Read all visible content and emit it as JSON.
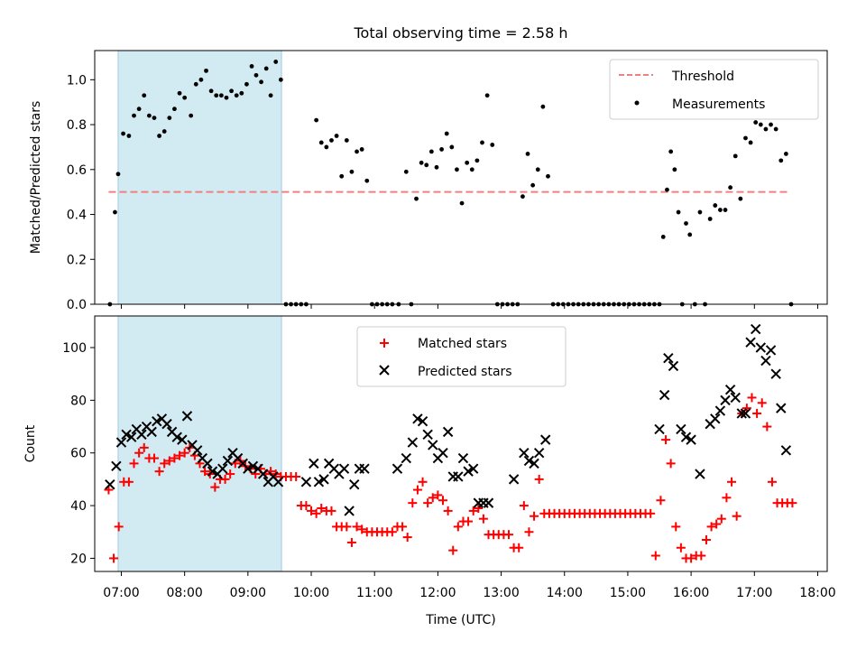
{
  "chart_data": [
    {
      "type": "scatter",
      "title": "Total observing time = 2.58 h",
      "ylabel": "Matched/Predicted stars",
      "xlabel": "",
      "xlim": [
        6.58,
        18.15
      ],
      "ylim": [
        0,
        1.13
      ],
      "yticks": [
        "0.0",
        "0.2",
        "0.4",
        "0.6",
        "0.8",
        "1.0"
      ],
      "grid": false,
      "legend": "top-right",
      "shaded_interval": {
        "x": [
          6.95,
          9.53
        ],
        "color": "#add8e6"
      },
      "threshold": {
        "name": "Threshold",
        "y": 0.5,
        "x": [
          6.8,
          17.55
        ],
        "color": "#f08080"
      },
      "series": [
        {
          "name": "Measurements",
          "color": "#000000",
          "x": [
            6.82,
            6.9,
            6.95,
            7.03,
            7.12,
            7.2,
            7.28,
            7.36,
            7.44,
            7.52,
            7.6,
            7.68,
            7.76,
            7.84,
            7.92,
            8.0,
            8.1,
            8.18,
            8.26,
            8.34,
            8.42,
            8.5,
            8.58,
            8.66,
            8.74,
            8.82,
            8.9,
            8.98,
            9.06,
            9.13,
            9.21,
            9.29,
            9.36,
            9.44,
            9.52,
            9.6,
            9.68,
            9.76,
            9.84,
            9.92,
            10.08,
            10.16,
            10.24,
            10.32,
            10.4,
            10.48,
            10.56,
            10.64,
            10.72,
            10.8,
            10.88,
            10.96,
            11.04,
            11.12,
            11.2,
            11.28,
            11.38,
            11.5,
            11.58,
            11.66,
            11.74,
            11.82,
            11.9,
            11.98,
            12.06,
            12.14,
            12.22,
            12.3,
            12.38,
            12.46,
            12.54,
            12.62,
            12.7,
            12.78,
            12.86,
            12.94,
            13.02,
            13.1,
            13.18,
            13.26,
            13.34,
            13.42,
            13.5,
            13.58,
            13.66,
            13.74,
            13.82,
            13.9,
            13.98,
            14.06,
            14.14,
            14.22,
            14.3,
            14.38,
            14.46,
            14.54,
            14.62,
            14.7,
            14.78,
            14.86,
            14.94,
            15.02,
            15.1,
            15.18,
            15.26,
            15.34,
            15.42,
            15.5,
            15.56,
            15.62,
            15.68,
            15.74,
            15.8,
            15.86,
            15.92,
            15.98,
            16.06,
            16.14,
            16.22,
            16.3,
            16.38,
            16.46,
            16.54,
            16.62,
            16.7,
            16.78,
            16.86,
            16.94,
            17.02,
            17.1,
            17.18,
            17.26,
            17.34,
            17.42,
            17.5,
            17.58
          ],
          "y": [
            0.0,
            0.41,
            0.58,
            0.76,
            0.75,
            0.84,
            0.87,
            0.93,
            0.84,
            0.83,
            0.75,
            0.77,
            0.83,
            0.87,
            0.94,
            0.92,
            0.84,
            0.98,
            1.0,
            1.04,
            0.95,
            0.93,
            0.93,
            0.92,
            0.95,
            0.93,
            0.94,
            0.98,
            1.06,
            1.02,
            0.99,
            1.05,
            0.93,
            1.08,
            1.0,
            0.0,
            0.0,
            0.0,
            0.0,
            0.0,
            0.82,
            0.72,
            0.7,
            0.73,
            0.75,
            0.57,
            0.73,
            0.59,
            0.68,
            0.69,
            0.55,
            0.0,
            0.0,
            0.0,
            0.0,
            0.0,
            0.0,
            0.59,
            0.0,
            0.47,
            0.63,
            0.62,
            0.68,
            0.61,
            0.69,
            0.76,
            0.7,
            0.6,
            0.45,
            0.63,
            0.6,
            0.64,
            0.72,
            0.93,
            0.71,
            0.0,
            0.0,
            0.0,
            0.0,
            0.0,
            0.48,
            0.67,
            0.53,
            0.6,
            0.88,
            0.57,
            0.0,
            0.0,
            0.0,
            0.0,
            0.0,
            0.0,
            0.0,
            0.0,
            0.0,
            0.0,
            0.0,
            0.0,
            0.0,
            0.0,
            0.0,
            0.0,
            0.0,
            0.0,
            0.0,
            0.0,
            0.0,
            0.0,
            0.3,
            0.51,
            0.68,
            0.6,
            0.41,
            0.0,
            0.36,
            0.31,
            0.0,
            0.41,
            0.0,
            0.38,
            0.44,
            0.42,
            0.42,
            0.52,
            0.66,
            0.47,
            0.74,
            0.72,
            0.81,
            0.8,
            0.78,
            0.8,
            0.78,
            0.64,
            0.67,
            0.0
          ]
        }
      ]
    },
    {
      "type": "scatter",
      "xlabel": "Time (UTC)",
      "ylabel": "Count",
      "xlim": [
        6.58,
        18.15
      ],
      "ylim": [
        15,
        112
      ],
      "xticks": [
        "07:00",
        "08:00",
        "09:00",
        "10:00",
        "11:00",
        "12:00",
        "13:00",
        "14:00",
        "15:00",
        "16:00",
        "17:00",
        "18:00"
      ],
      "yticks": [
        "20",
        "40",
        "60",
        "80",
        "100"
      ],
      "grid": false,
      "legend": "upper center",
      "shaded_interval": {
        "x": [
          6.95,
          9.53
        ],
        "color": "#add8e6"
      },
      "series": [
        {
          "name": "Matched stars",
          "marker": "plus",
          "color": "#ff0000",
          "x": [
            6.8,
            6.88,
            6.96,
            7.04,
            7.12,
            7.2,
            7.28,
            7.36,
            7.44,
            7.52,
            7.6,
            7.68,
            7.76,
            7.84,
            7.92,
            8.0,
            8.08,
            8.16,
            8.24,
            8.32,
            8.4,
            8.48,
            8.56,
            8.64,
            8.72,
            8.8,
            8.88,
            8.96,
            9.04,
            9.12,
            9.2,
            9.28,
            9.36,
            9.44,
            9.52,
            9.6,
            9.68,
            9.76,
            9.84,
            9.92,
            10.0,
            10.08,
            10.16,
            10.24,
            10.32,
            10.4,
            10.48,
            10.56,
            10.64,
            10.72,
            10.8,
            10.88,
            10.96,
            11.04,
            11.12,
            11.2,
            11.28,
            11.36,
            11.44,
            11.52,
            11.6,
            11.68,
            11.76,
            11.84,
            11.92,
            12.0,
            12.08,
            12.16,
            12.24,
            12.32,
            12.4,
            12.48,
            12.56,
            12.64,
            12.72,
            12.8,
            12.88,
            12.96,
            13.04,
            13.12,
            13.2,
            13.28,
            13.36,
            13.44,
            13.52,
            13.6,
            13.68,
            13.76,
            13.84,
            13.92,
            14.0,
            14.08,
            14.16,
            14.24,
            14.32,
            14.4,
            14.48,
            14.56,
            14.64,
            14.72,
            14.8,
            14.88,
            14.96,
            15.04,
            15.12,
            15.2,
            15.28,
            15.36,
            15.44,
            15.52,
            15.6,
            15.68,
            15.76,
            15.84,
            15.92,
            16.0,
            16.08,
            16.16,
            16.24,
            16.32,
            16.4,
            16.48,
            16.56,
            16.64,
            16.72,
            16.8,
            16.88,
            16.96,
            17.04,
            17.12,
            17.2,
            17.28,
            17.36,
            17.44,
            17.52,
            17.6
          ],
          "y": [
            46,
            20,
            32,
            49,
            49,
            56,
            60,
            62,
            58,
            58,
            53,
            56,
            57,
            58,
            59,
            60,
            62,
            59,
            56,
            53,
            52,
            47,
            50,
            50,
            52,
            56,
            57,
            55,
            54,
            52,
            54,
            52,
            53,
            52,
            51,
            51,
            51,
            51,
            40,
            40,
            38,
            37,
            39,
            38,
            38,
            32,
            32,
            32,
            26,
            32,
            31,
            30,
            30,
            30,
            30,
            30,
            30,
            32,
            32,
            28,
            41,
            46,
            49,
            41,
            43,
            44,
            42,
            38,
            23,
            32,
            34,
            34,
            38,
            39,
            35,
            29,
            29,
            29,
            29,
            29,
            24,
            24,
            40,
            30,
            36,
            50,
            37,
            37,
            37,
            37,
            37,
            37,
            37,
            37,
            37,
            37,
            37,
            37,
            37,
            37,
            37,
            37,
            37,
            37,
            37,
            37,
            37,
            37,
            21,
            42,
            65,
            56,
            32,
            24,
            20,
            20,
            21,
            21,
            27,
            32,
            33,
            35,
            43,
            49,
            36,
            75,
            77,
            81,
            75,
            79,
            70,
            49,
            41,
            41,
            41,
            41
          ]
        },
        {
          "name": "Predicted stars",
          "marker": "x",
          "color": "#000000",
          "x": [
            6.82,
            6.92,
            7.0,
            7.08,
            7.16,
            7.24,
            7.32,
            7.4,
            7.48,
            7.56,
            7.64,
            7.72,
            7.8,
            7.88,
            7.96,
            8.04,
            8.12,
            8.2,
            8.28,
            8.36,
            8.44,
            8.52,
            8.6,
            8.68,
            8.76,
            8.84,
            8.92,
            9.0,
            9.08,
            9.16,
            9.24,
            9.32,
            9.4,
            9.48,
            9.92,
            10.04,
            10.12,
            10.2,
            10.28,
            10.36,
            10.44,
            10.52,
            10.6,
            10.68,
            10.76,
            10.84,
            11.36,
            11.5,
            11.6,
            11.68,
            11.76,
            11.84,
            11.92,
            12.0,
            12.08,
            12.16,
            12.24,
            12.32,
            12.4,
            12.48,
            12.56,
            12.64,
            12.72,
            12.8,
            13.2,
            13.36,
            13.44,
            13.52,
            13.6,
            13.7,
            15.5,
            15.58,
            15.64,
            15.72,
            15.84,
            15.92,
            16.0,
            16.14,
            16.3,
            16.38,
            16.46,
            16.54,
            16.62,
            16.7,
            16.8,
            16.86,
            16.94,
            17.02,
            17.1,
            17.18,
            17.26,
            17.34,
            17.42,
            17.5
          ],
          "y": [
            48,
            55,
            64,
            67,
            66,
            69,
            67,
            70,
            68,
            72,
            73,
            71,
            68,
            66,
            65,
            74,
            63,
            61,
            58,
            56,
            53,
            52,
            54,
            57,
            60,
            58,
            56,
            54,
            55,
            54,
            52,
            49,
            51,
            49,
            49,
            56,
            49,
            50,
            56,
            54,
            52,
            54,
            38,
            48,
            54,
            54,
            54,
            58,
            64,
            73,
            72,
            67,
            63,
            58,
            60,
            68,
            51,
            51,
            58,
            53,
            54,
            41,
            41,
            41,
            50,
            60,
            57,
            56,
            60,
            65,
            69,
            82,
            96,
            93,
            69,
            66,
            65,
            52,
            71,
            73,
            76,
            80,
            84,
            81,
            75,
            75,
            102,
            107,
            100,
            95,
            99,
            90,
            77,
            61
          ]
        }
      ]
    }
  ]
}
